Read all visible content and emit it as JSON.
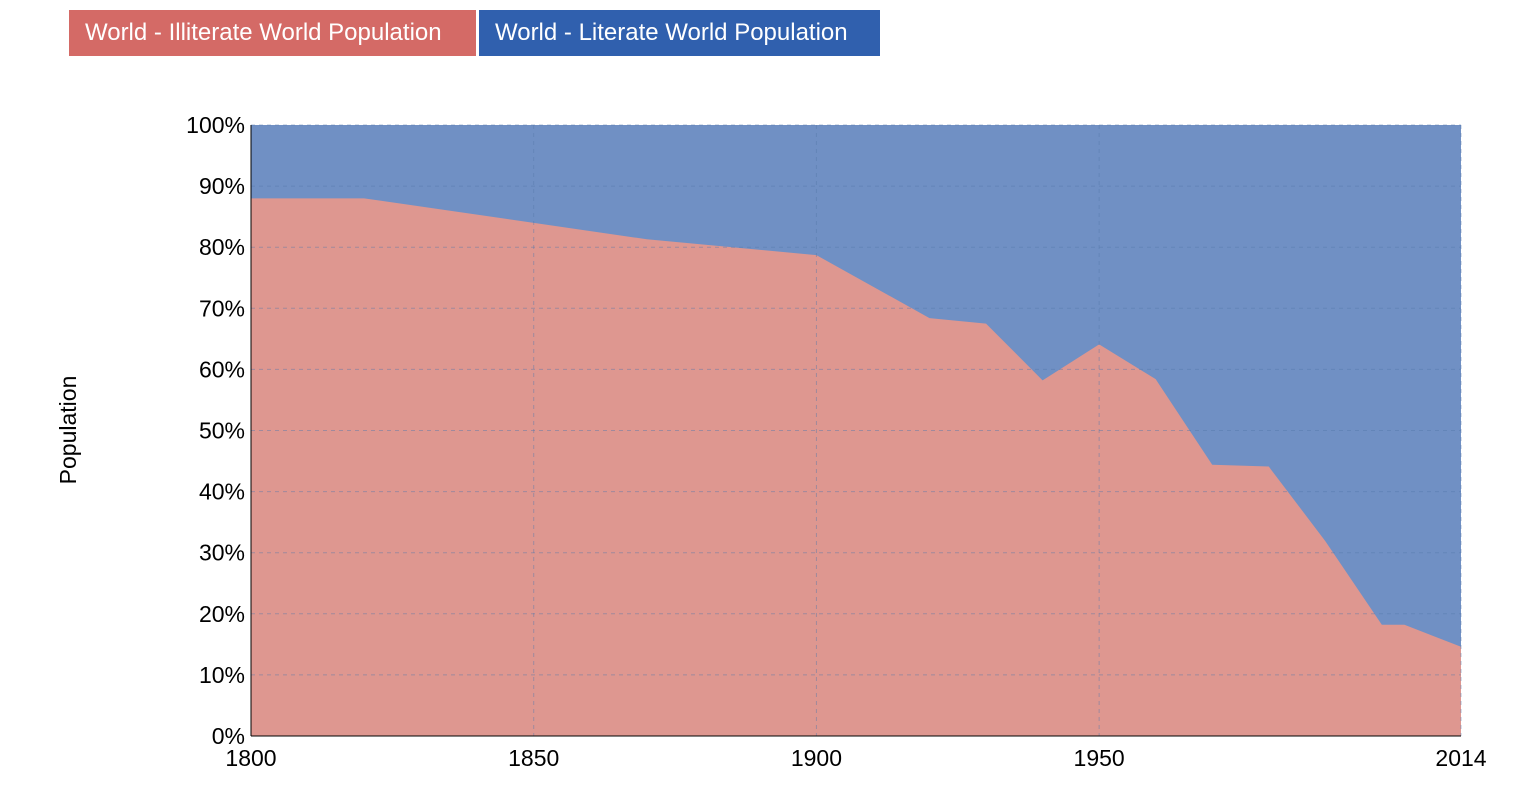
{
  "legend": {
    "illiterate_label": "World - Illiterate World Population",
    "literate_label": "World - Literate World Population"
  },
  "colors": {
    "illiterate_button": "#d46a66",
    "literate_button": "#3060ae",
    "illiterate_area": "#de9790",
    "literate_area": "#7090c4",
    "grid": "#5577aa"
  },
  "chart_data": {
    "type": "area",
    "stacked": true,
    "normalized_percent": true,
    "title": "",
    "xlabel": "",
    "ylabel": "Population",
    "xlim": [
      1800,
      2014
    ],
    "ylim": [
      0,
      100
    ],
    "x_ticks": [
      "1800",
      "1850",
      "1900",
      "1950",
      "2014"
    ],
    "y_ticks": [
      "0%",
      "10%",
      "20%",
      "30%",
      "40%",
      "50%",
      "60%",
      "70%",
      "80%",
      "90%",
      "100%"
    ],
    "grid": true,
    "x": [
      1800,
      1820,
      1870,
      1900,
      1920,
      1930,
      1940,
      1950,
      1960,
      1970,
      1980,
      1990,
      2000,
      2004,
      2014
    ],
    "series": [
      {
        "name": "World - Illiterate World Population",
        "values": [
          88,
          88,
          81.3,
          78.7,
          68.4,
          67.5,
          58.2,
          64.1,
          58.4,
          44.4,
          44.1,
          31.9,
          18.2,
          18.2,
          14.6
        ]
      },
      {
        "name": "World - Literate World Population",
        "values": [
          12,
          12,
          18.7,
          21.3,
          31.6,
          32.5,
          41.8,
          35.9,
          41.6,
          55.6,
          55.9,
          68.1,
          81.8,
          81.8,
          85.4
        ]
      }
    ]
  }
}
